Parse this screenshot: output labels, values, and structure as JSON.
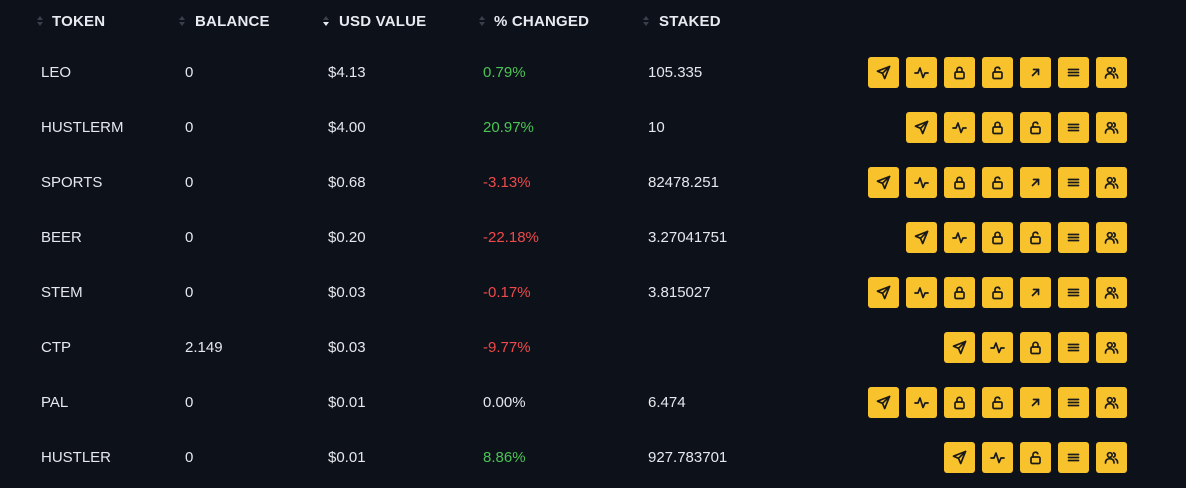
{
  "columns": [
    {
      "key": "token",
      "label": "TOKEN",
      "sort": "none"
    },
    {
      "key": "balance",
      "label": "BALANCE",
      "sort": "none"
    },
    {
      "key": "usd_value",
      "label": "USD VALUE",
      "sort": "desc"
    },
    {
      "key": "pct_changed",
      "label": "% CHANGED",
      "sort": "none"
    },
    {
      "key": "staked",
      "label": "STAKED",
      "sort": "none"
    }
  ],
  "rows": [
    {
      "token": "LEO",
      "balance": "0",
      "usd_value": "$4.13",
      "pct_changed": "0.79%",
      "trend": "positive",
      "staked": "105.335",
      "actions": [
        "send-icon",
        "activity-icon",
        "lock-icon",
        "unlock-icon",
        "arrow-up-right-icon",
        "menu-icon",
        "users-icon"
      ]
    },
    {
      "token": "HUSTLERM",
      "balance": "0",
      "usd_value": "$4.00",
      "pct_changed": "20.97%",
      "trend": "positive",
      "staked": "10",
      "actions": [
        "send-icon",
        "activity-icon",
        "lock-icon",
        "unlock-icon",
        "menu-icon",
        "users-icon"
      ]
    },
    {
      "token": "SPORTS",
      "balance": "0",
      "usd_value": "$0.68",
      "pct_changed": "-3.13%",
      "trend": "negative",
      "staked": "82478.251",
      "actions": [
        "send-icon",
        "activity-icon",
        "lock-icon",
        "unlock-icon",
        "arrow-up-right-icon",
        "menu-icon",
        "users-icon"
      ]
    },
    {
      "token": "BEER",
      "balance": "0",
      "usd_value": "$0.20",
      "pct_changed": "-22.18%",
      "trend": "negative",
      "staked": "3.27041751",
      "actions": [
        "send-icon",
        "activity-icon",
        "lock-icon",
        "unlock-icon",
        "menu-icon",
        "users-icon"
      ]
    },
    {
      "token": "STEM",
      "balance": "0",
      "usd_value": "$0.03",
      "pct_changed": "-0.17%",
      "trend": "negative",
      "staked": "3.815027",
      "actions": [
        "send-icon",
        "activity-icon",
        "lock-icon",
        "unlock-icon",
        "arrow-up-right-icon",
        "menu-icon",
        "users-icon"
      ]
    },
    {
      "token": "CTP",
      "balance": "2.149",
      "usd_value": "$0.03",
      "pct_changed": "-9.77%",
      "trend": "negative",
      "staked": "",
      "actions": [
        "send-icon",
        "activity-icon",
        "lock-icon",
        "menu-icon",
        "users-icon"
      ]
    },
    {
      "token": "PAL",
      "balance": "0",
      "usd_value": "$0.01",
      "pct_changed": "0.00%",
      "trend": "neutral",
      "staked": "6.474",
      "actions": [
        "send-icon",
        "activity-icon",
        "lock-icon",
        "unlock-icon",
        "arrow-up-right-icon",
        "menu-icon",
        "users-icon"
      ]
    },
    {
      "token": "HUSTLER",
      "balance": "0",
      "usd_value": "$0.01",
      "pct_changed": "8.86%",
      "trend": "positive",
      "staked": "927.783701",
      "actions": [
        "send-icon",
        "activity-icon",
        "unlock-icon",
        "menu-icon",
        "users-icon"
      ]
    }
  ],
  "colors": {
    "background": "#0d111a",
    "positive": "#4cc455",
    "negative": "#ef4a4a",
    "accent": "#f7c22c"
  }
}
